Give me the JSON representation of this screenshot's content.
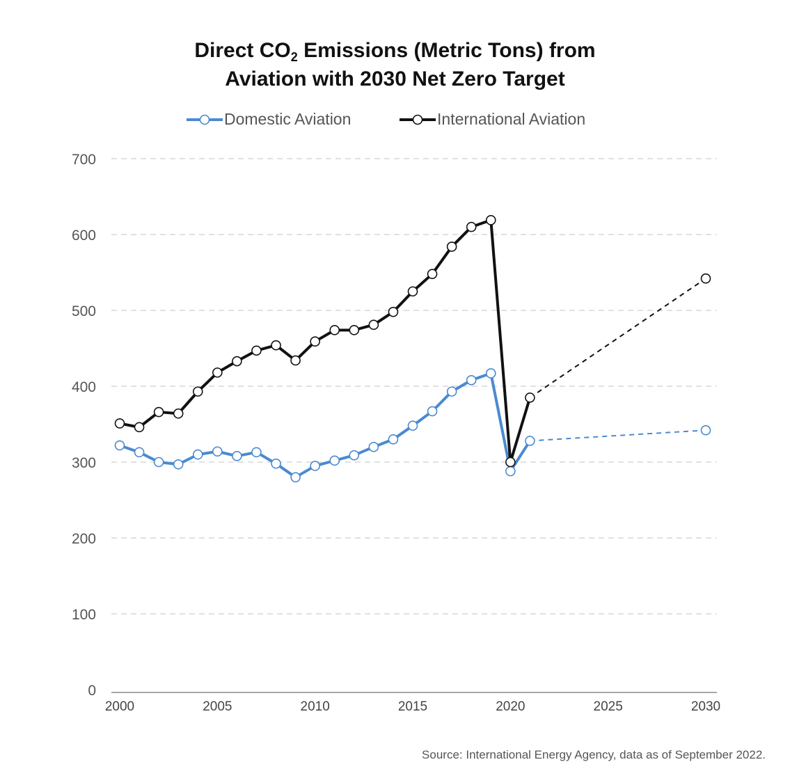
{
  "chart_data": {
    "type": "line",
    "title_parts": {
      "before": "Direct CO",
      "subscript": "2",
      "after": " Emissions (Metric Tons) from",
      "line2": "Aviation with 2030 Net Zero Target"
    },
    "source": "Source: International Energy Agency, data as of September 2022.",
    "xlim": [
      2000,
      2030
    ],
    "ylim": [
      0,
      700
    ],
    "x_ticks": [
      "2000",
      "2005",
      "2010",
      "2015",
      "2020",
      "2025",
      "2030"
    ],
    "y_ticks": [
      "0",
      "100",
      "200",
      "300",
      "400",
      "500",
      "600",
      "700"
    ],
    "grid": true,
    "legend_position": "top-center",
    "series": [
      {
        "name": "Domestic Aviation",
        "color": "#4a8ad0",
        "x": [
          2000,
          2001,
          2002,
          2003,
          2004,
          2005,
          2006,
          2007,
          2008,
          2009,
          2010,
          2011,
          2012,
          2013,
          2014,
          2015,
          2016,
          2017,
          2018,
          2019,
          2020,
          2021
        ],
        "values": [
          322,
          313,
          300,
          297,
          310,
          314,
          308,
          313,
          298,
          280,
          295,
          302,
          309,
          320,
          330,
          348,
          367,
          393,
          408,
          417,
          288,
          328
        ],
        "projection": {
          "x": [
            2021,
            2030
          ],
          "values": [
            328,
            342
          ]
        }
      },
      {
        "name": "International Aviation",
        "color": "#111111",
        "x": [
          2000,
          2001,
          2002,
          2003,
          2004,
          2005,
          2006,
          2007,
          2008,
          2009,
          2010,
          2011,
          2012,
          2013,
          2014,
          2015,
          2016,
          2017,
          2018,
          2019,
          2020,
          2021
        ],
        "values": [
          351,
          346,
          366,
          364,
          393,
          418,
          433,
          447,
          454,
          434,
          459,
          474,
          474,
          481,
          498,
          525,
          548,
          584,
          610,
          619,
          300,
          385
        ],
        "projection": {
          "x": [
            2021,
            2030
          ],
          "values": [
            385,
            542
          ]
        }
      }
    ]
  }
}
